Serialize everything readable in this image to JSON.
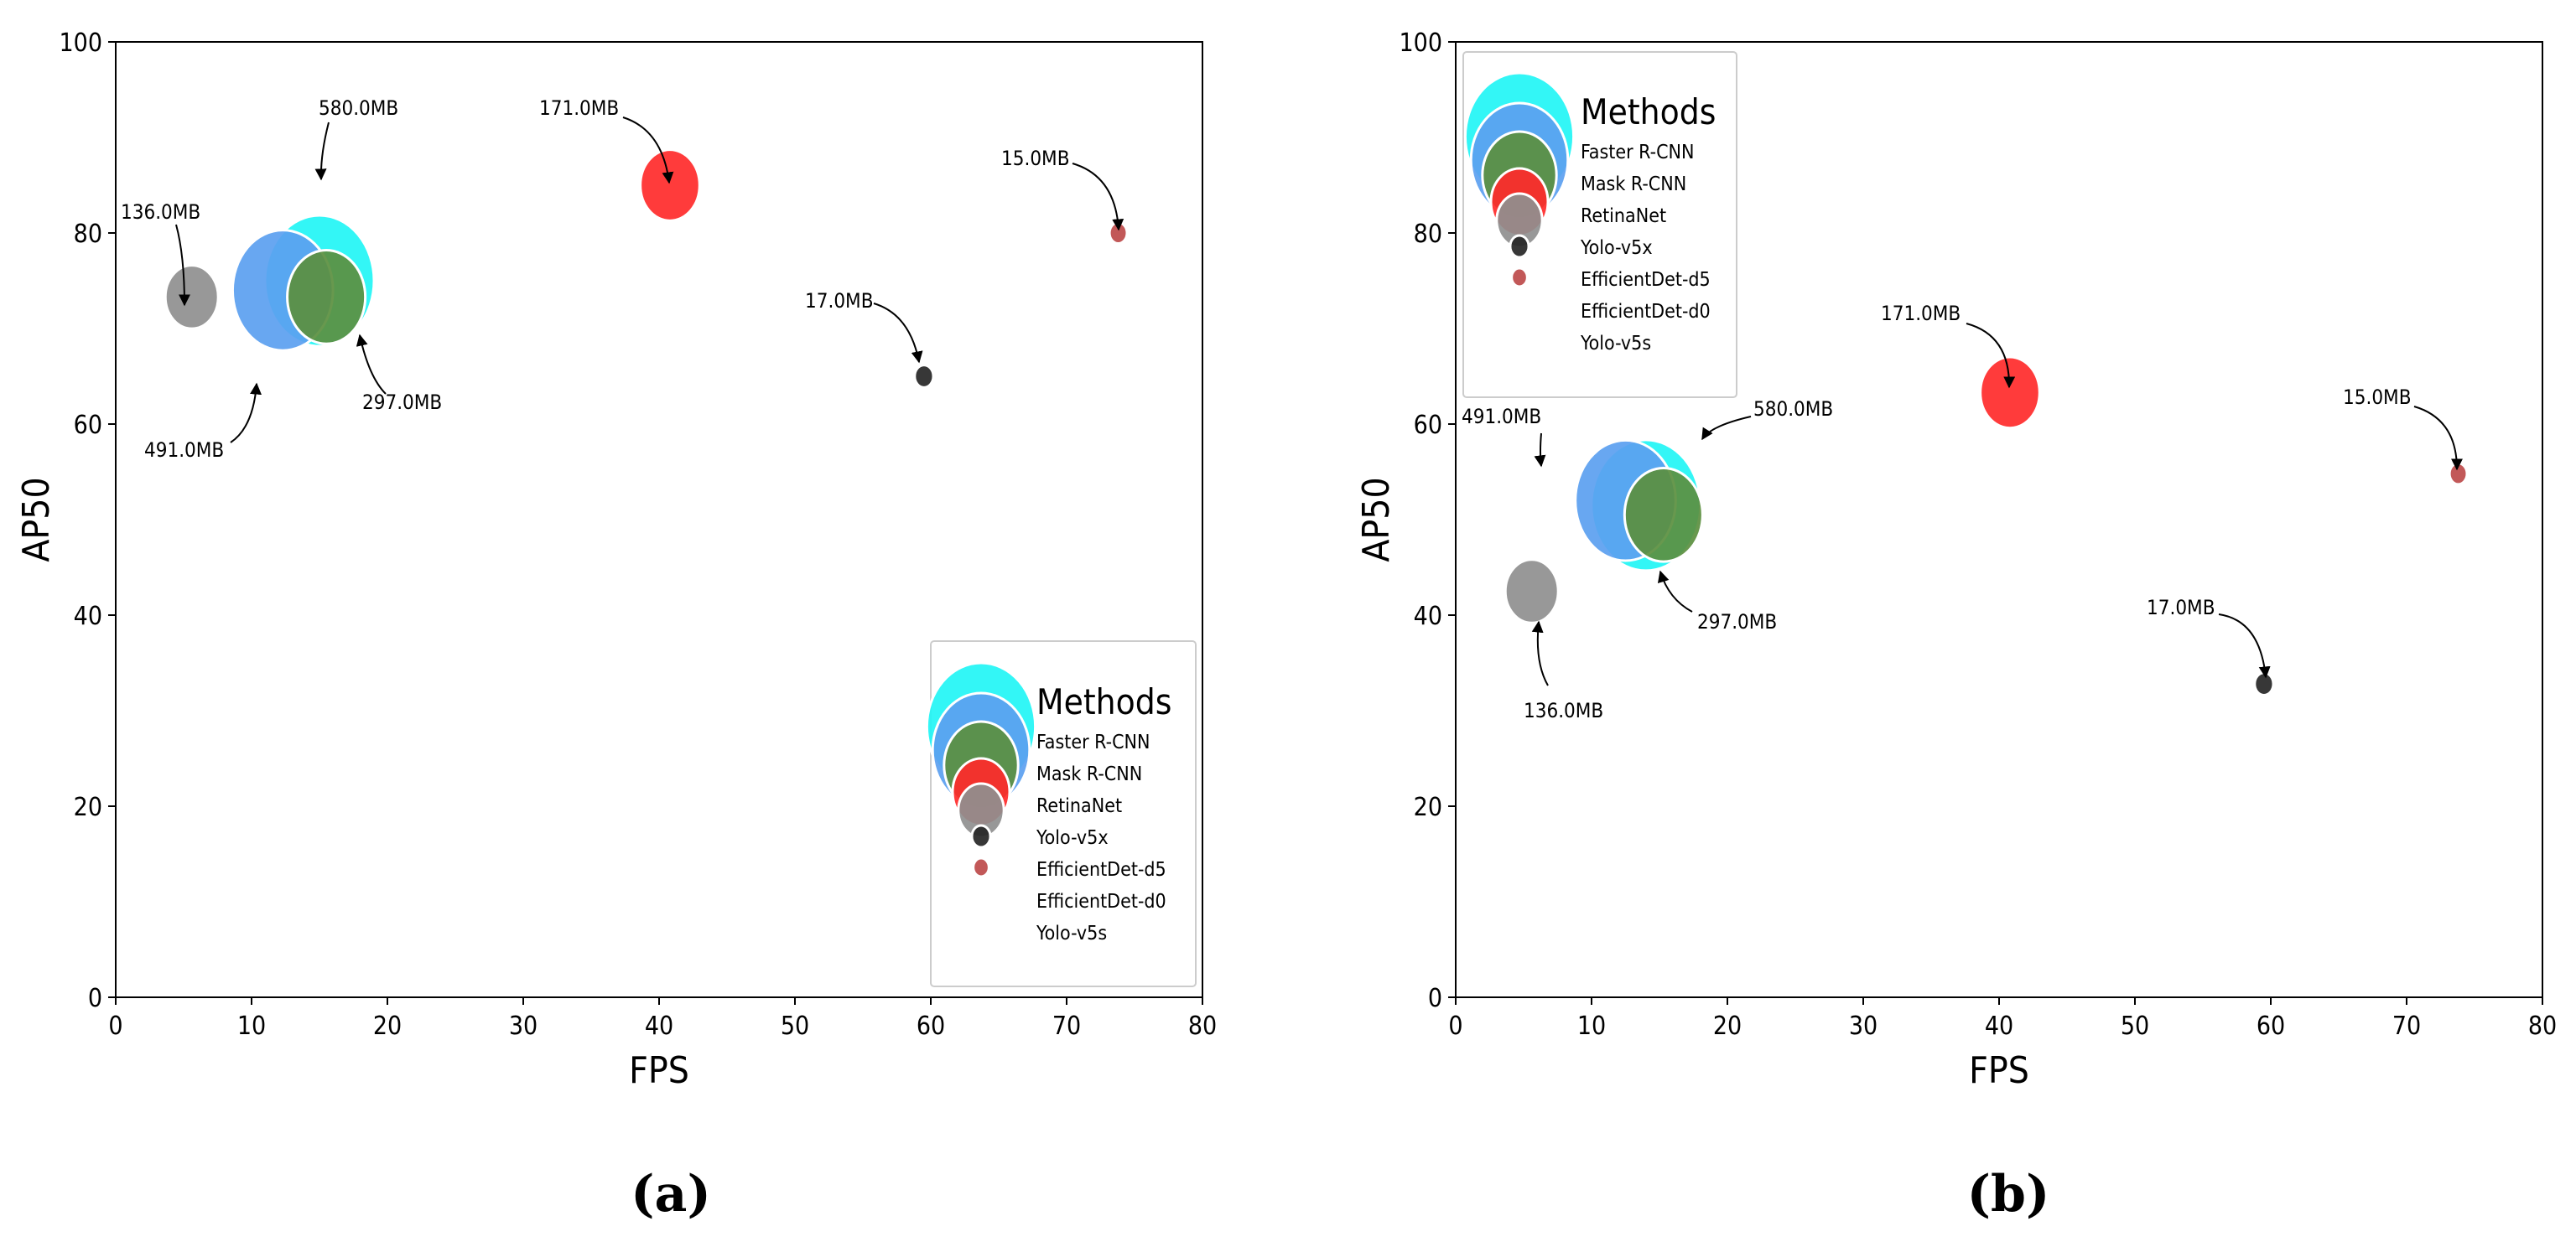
{
  "chart_data": [
    {
      "type": "scatter",
      "subtitle": "(a)",
      "xlabel": "FPS",
      "ylabel": "AP50",
      "xlim": [
        0,
        80
      ],
      "ylim": [
        0,
        100
      ],
      "xticks": [
        "0",
        "10",
        "20",
        "30",
        "40",
        "50",
        "60",
        "70",
        "80"
      ],
      "yticks": [
        "0",
        "20",
        "40",
        "60",
        "80",
        "100"
      ],
      "grid": false,
      "legend": {
        "title": "Methods",
        "position": "bottom-right"
      },
      "series": [
        {
          "name": "Faster R-CNN",
          "x": 15.0,
          "y": 75.0,
          "size_mb": 580.0,
          "label": "580.0MB",
          "color": "#22f5f5"
        },
        {
          "name": "Mask R-CNN",
          "x": 12.3,
          "y": 74.0,
          "size_mb": 491.0,
          "label": "491.0MB",
          "color": "#5b9ff0"
        },
        {
          "name": "RetinaNet",
          "x": 15.5,
          "y": 73.3,
          "size_mb": 297.0,
          "label": "297.0MB",
          "color": "#5b8f3f"
        },
        {
          "name": "Yolo-v5x",
          "x": 40.8,
          "y": 85.0,
          "size_mb": 171.0,
          "label": "171.0MB",
          "color": "#ff2a2a"
        },
        {
          "name": "EfficientDet-d5",
          "x": 5.6,
          "y": 73.3,
          "size_mb": 136.0,
          "label": "136.0MB",
          "color": "#8f8f8f"
        },
        {
          "name": "EfficientDet-d0",
          "x": 59.5,
          "y": 65.0,
          "size_mb": 17.0,
          "label": "17.0MB",
          "color": "#262626"
        },
        {
          "name": "Yolo-v5s",
          "x": 73.8,
          "y": 80.0,
          "size_mb": 15.0,
          "label": "15.0MB",
          "color": "#bd4a4a"
        }
      ]
    },
    {
      "type": "scatter",
      "subtitle": "(b)",
      "xlabel": "FPS",
      "ylabel": "AP50",
      "xlim": [
        0,
        80
      ],
      "ylim": [
        0,
        100
      ],
      "xticks": [
        "0",
        "10",
        "20",
        "30",
        "40",
        "50",
        "60",
        "70",
        "80"
      ],
      "yticks": [
        "0",
        "20",
        "40",
        "60",
        "80",
        "100"
      ],
      "grid": false,
      "legend": {
        "title": "Methods",
        "position": "top-left"
      },
      "series": [
        {
          "name": "Faster R-CNN",
          "x": 14.0,
          "y": 51.5,
          "size_mb": 580.0,
          "label": "580.0MB",
          "color": "#22f5f5"
        },
        {
          "name": "Mask R-CNN",
          "x": 12.5,
          "y": 52.0,
          "size_mb": 491.0,
          "label": "491.0MB",
          "color": "#5b9ff0"
        },
        {
          "name": "RetinaNet",
          "x": 15.3,
          "y": 50.5,
          "size_mb": 297.0,
          "label": "297.0MB",
          "color": "#5b8f3f"
        },
        {
          "name": "Yolo-v5x",
          "x": 40.8,
          "y": 63.3,
          "size_mb": 171.0,
          "label": "171.0MB",
          "color": "#ff2a2a"
        },
        {
          "name": "EfficientDet-d5",
          "x": 5.6,
          "y": 42.5,
          "size_mb": 136.0,
          "label": "136.0MB",
          "color": "#8f8f8f"
        },
        {
          "name": "EfficientDet-d0",
          "x": 59.5,
          "y": 32.8,
          "size_mb": 17.0,
          "label": "17.0MB",
          "color": "#262626"
        },
        {
          "name": "Yolo-v5s",
          "x": 73.8,
          "y": 54.8,
          "size_mb": 15.0,
          "label": "15.0MB",
          "color": "#bd4a4a"
        }
      ]
    }
  ]
}
